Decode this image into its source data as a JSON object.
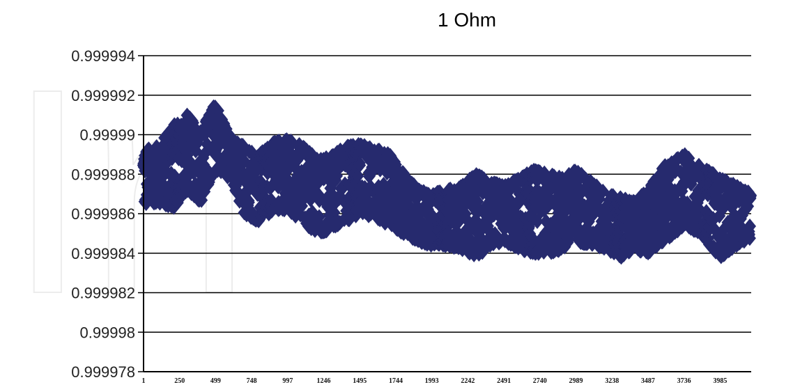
{
  "chart_data": {
    "type": "scatter",
    "title": "1 Ohm",
    "xlabel": "",
    "ylabel": "",
    "ylim": [
      0.999978,
      0.999994
    ],
    "xlim": [
      1,
      4200
    ],
    "y_tick_labels": [
      "0.999994",
      "0.999992",
      "0.99999",
      "0.999988",
      "0.999986",
      "0.999984",
      "0.999982",
      "0.99998",
      "0.999978"
    ],
    "y_tick_values": [
      0.999994,
      0.999992,
      0.99999,
      0.999988,
      0.999986,
      0.999984,
      0.999982,
      0.99998,
      0.999978
    ],
    "x_tick_labels": [
      "1",
      "250",
      "499",
      "748",
      "997",
      "1246",
      "1495",
      "1744",
      "1993",
      "2242",
      "2491",
      "2740",
      "2989",
      "3238",
      "3487",
      "3736",
      "3985"
    ],
    "x_tick_values": [
      1,
      250,
      499,
      748,
      997,
      1246,
      1495,
      1744,
      1993,
      2242,
      2491,
      2740,
      2989,
      3238,
      3487,
      3736,
      3985
    ],
    "grid": true,
    "legend": "none",
    "marker": "diamond",
    "marker_color": "#262a6e",
    "envelope": {
      "x": [
        1,
        100,
        200,
        300,
        400,
        499,
        600,
        700,
        800,
        900,
        997,
        1100,
        1200,
        1300,
        1400,
        1495,
        1600,
        1700,
        1800,
        1900,
        1993,
        2100,
        2200,
        2300,
        2400,
        2491,
        2600,
        2700,
        2800,
        2900,
        2989,
        3100,
        3200,
        3300,
        3400,
        3487,
        3600,
        3736,
        3850,
        3985,
        4100,
        4200
      ],
      "y_upper": [
        0.9999892,
        0.9999894,
        0.9999904,
        0.999991,
        0.9999902,
        0.9999916,
        0.9999898,
        0.9999894,
        0.999989,
        0.9999896,
        0.9999898,
        0.9999894,
        0.9999888,
        0.9999889,
        0.9999894,
        0.9999895,
        0.9999893,
        0.999989,
        0.999988,
        0.9999872,
        0.999987,
        0.9999872,
        0.9999874,
        0.999988,
        0.9999876,
        0.9999874,
        0.9999878,
        0.9999882,
        0.999988,
        0.9999878,
        0.9999882,
        0.9999876,
        0.999987,
        0.9999868,
        0.9999866,
        0.9999872,
        0.9999884,
        0.999989,
        0.9999884,
        0.9999878,
        0.9999874,
        0.999987
      ],
      "y_lower": [
        0.9999864,
        0.9999866,
        0.9999862,
        0.9999872,
        0.9999866,
        0.9999882,
        0.9999878,
        0.999986,
        0.9999856,
        0.9999862,
        0.9999862,
        0.9999856,
        0.999985,
        0.9999852,
        0.9999856,
        0.999986,
        0.9999858,
        0.9999854,
        0.999985,
        0.9999846,
        0.9999844,
        0.9999844,
        0.9999842,
        0.9999838,
        0.9999844,
        0.9999846,
        0.9999842,
        0.999984,
        0.999984,
        0.9999842,
        0.9999846,
        0.9999844,
        0.9999842,
        0.9999838,
        0.9999842,
        0.999984,
        0.9999846,
        0.9999854,
        0.999985,
        0.9999838,
        0.9999844,
        0.9999848
      ]
    }
  }
}
